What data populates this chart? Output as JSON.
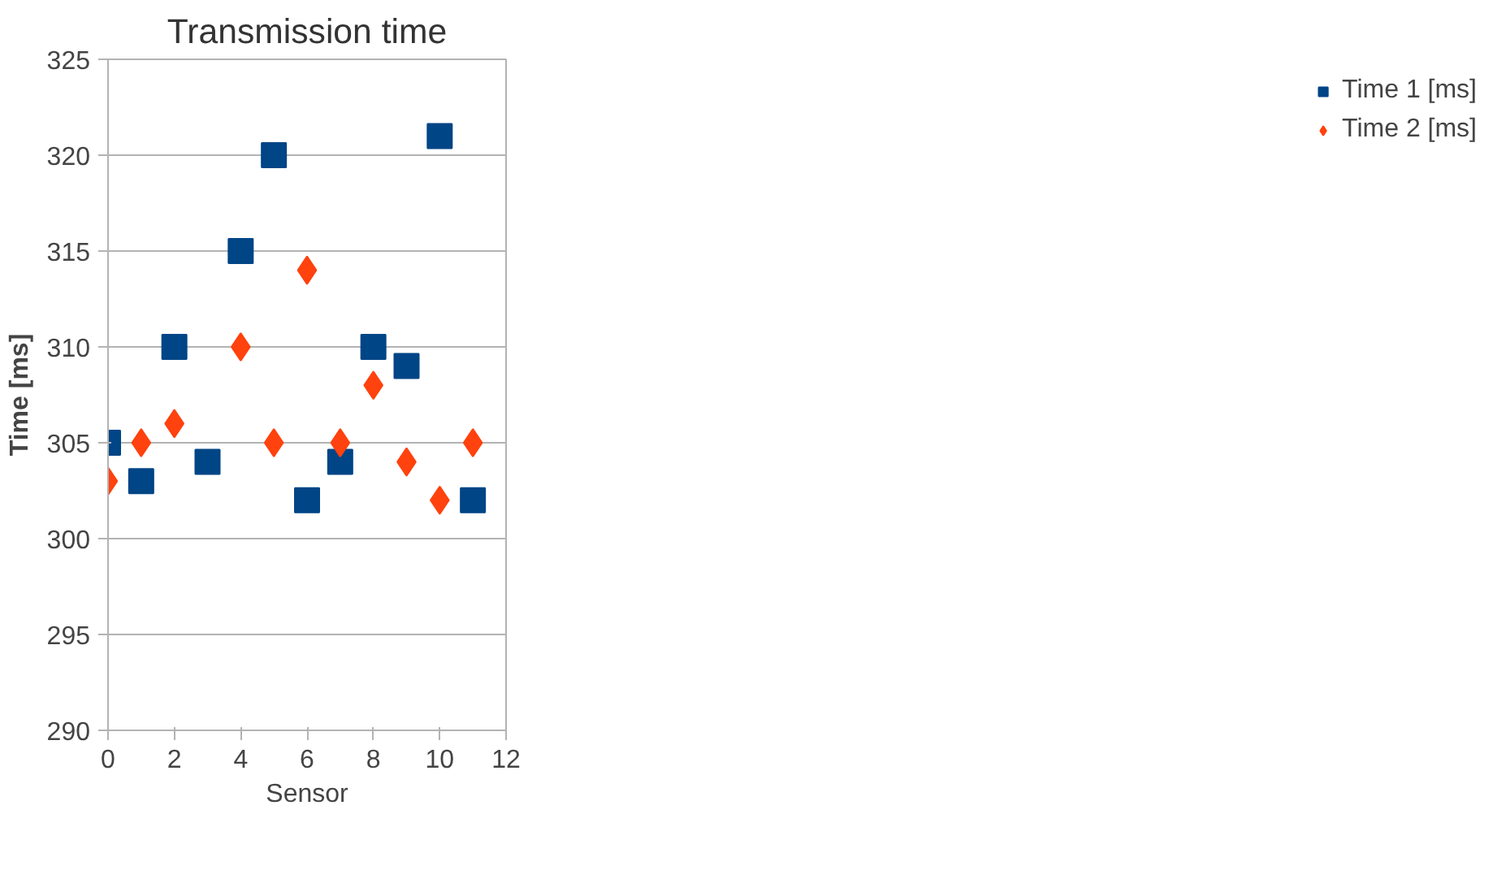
{
  "chart_data": {
    "type": "scatter",
    "title": "Transmission time",
    "xlabel": "Sensor",
    "ylabel": "Time [ms]",
    "x": [
      0,
      1,
      2,
      3,
      4,
      5,
      6,
      7,
      8,
      9,
      10,
      11
    ],
    "series": [
      {
        "name": "Time 1 [ms]",
        "color": "#004586",
        "marker": "square",
        "values": [
          305,
          303,
          310,
          304,
          315,
          320,
          302,
          304,
          310,
          309,
          321,
          302
        ]
      },
      {
        "name": "Time 2 [ms]",
        "color": "#ff420e",
        "marker": "diamond",
        "values": [
          303,
          305,
          306,
          null,
          310,
          305,
          314,
          305,
          308,
          304,
          302,
          305
        ]
      }
    ],
    "xlim": [
      0,
      12
    ],
    "xticks": [
      0,
      2,
      4,
      6,
      8,
      10,
      12
    ],
    "ylim": [
      290,
      325
    ],
    "yticks": [
      290,
      295,
      300,
      305,
      310,
      315,
      320,
      325
    ],
    "grid": "y",
    "legend": "right"
  }
}
